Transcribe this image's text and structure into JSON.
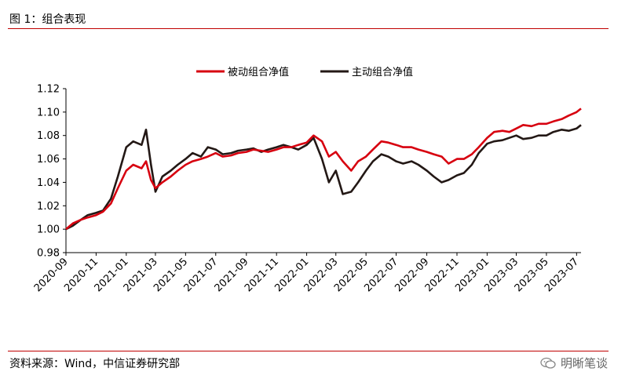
{
  "figure": {
    "title": "图 1：组合表现",
    "source": "资料来源：Wind，中信证券研究部",
    "watermark": "明晰笔谈"
  },
  "chart_data": {
    "type": "line",
    "title": "",
    "xlabel": "",
    "ylabel": "",
    "ylim": [
      0.98,
      1.12
    ],
    "y_ticks": [
      "0.98",
      "1.00",
      "1.02",
      "1.04",
      "1.06",
      "1.08",
      "1.10",
      "1.12"
    ],
    "x_range": [
      "2020-09",
      "2023-07"
    ],
    "x_ticks": [
      "2020-09",
      "2020-11",
      "2021-01",
      "2021-03",
      "2021-05",
      "2021-07",
      "2021-09",
      "2021-11",
      "2022-01",
      "2022-03",
      "2022-05",
      "2022-07",
      "2022-09",
      "2022-11",
      "2023-01",
      "2023-03",
      "2023-05",
      "2023-07"
    ],
    "legend_position": "top",
    "grid": false,
    "x": [
      "2020-09-01",
      "2020-09-15",
      "2020-10-01",
      "2020-10-15",
      "2020-11-01",
      "2020-11-15",
      "2020-12-01",
      "2020-12-15",
      "2021-01-01",
      "2021-01-15",
      "2021-02-01",
      "2021-02-10",
      "2021-02-20",
      "2021-03-01",
      "2021-03-15",
      "2021-04-01",
      "2021-04-15",
      "2021-05-01",
      "2021-05-15",
      "2021-06-01",
      "2021-06-15",
      "2021-07-01",
      "2021-07-15",
      "2021-08-01",
      "2021-08-15",
      "2021-09-01",
      "2021-09-15",
      "2021-10-01",
      "2021-10-15",
      "2021-11-01",
      "2021-11-15",
      "2021-12-01",
      "2021-12-15",
      "2022-01-01",
      "2022-01-15",
      "2022-02-01",
      "2022-02-15",
      "2022-03-01",
      "2022-03-15",
      "2022-04-01",
      "2022-04-15",
      "2022-05-01",
      "2022-05-15",
      "2022-06-01",
      "2022-06-15",
      "2022-07-01",
      "2022-07-15",
      "2022-08-01",
      "2022-08-15",
      "2022-09-01",
      "2022-09-15",
      "2022-10-01",
      "2022-10-15",
      "2022-11-01",
      "2022-11-15",
      "2022-12-01",
      "2022-12-15",
      "2023-01-01",
      "2023-01-15",
      "2023-02-01",
      "2023-02-15",
      "2023-03-01",
      "2023-03-15",
      "2023-04-01",
      "2023-04-15",
      "2023-05-01",
      "2023-05-15",
      "2023-06-01",
      "2023-06-15",
      "2023-07-01",
      "2023-07-10"
    ],
    "series": [
      {
        "name": "被动组合净值",
        "color": "#d7000f",
        "values": [
          1.0,
          1.005,
          1.008,
          1.01,
          1.012,
          1.015,
          1.022,
          1.035,
          1.05,
          1.055,
          1.052,
          1.058,
          1.042,
          1.035,
          1.04,
          1.045,
          1.05,
          1.055,
          1.058,
          1.06,
          1.062,
          1.065,
          1.062,
          1.063,
          1.065,
          1.066,
          1.068,
          1.067,
          1.066,
          1.068,
          1.07,
          1.07,
          1.072,
          1.074,
          1.08,
          1.075,
          1.062,
          1.066,
          1.058,
          1.05,
          1.058,
          1.062,
          1.068,
          1.075,
          1.074,
          1.072,
          1.07,
          1.07,
          1.068,
          1.066,
          1.064,
          1.062,
          1.056,
          1.06,
          1.06,
          1.064,
          1.07,
          1.078,
          1.083,
          1.084,
          1.083,
          1.086,
          1.089,
          1.088,
          1.09,
          1.09,
          1.092,
          1.094,
          1.097,
          1.1,
          1.103
        ]
      },
      {
        "name": "主动组合净值",
        "color": "#231815",
        "values": [
          1.0,
          1.003,
          1.008,
          1.012,
          1.014,
          1.016,
          1.026,
          1.045,
          1.07,
          1.075,
          1.072,
          1.085,
          1.055,
          1.032,
          1.045,
          1.05,
          1.055,
          1.06,
          1.065,
          1.062,
          1.07,
          1.068,
          1.064,
          1.065,
          1.067,
          1.068,
          1.069,
          1.066,
          1.068,
          1.07,
          1.072,
          1.07,
          1.068,
          1.072,
          1.078,
          1.06,
          1.04,
          1.05,
          1.03,
          1.032,
          1.04,
          1.05,
          1.058,
          1.064,
          1.062,
          1.058,
          1.056,
          1.058,
          1.055,
          1.05,
          1.045,
          1.04,
          1.042,
          1.046,
          1.048,
          1.055,
          1.065,
          1.073,
          1.075,
          1.076,
          1.078,
          1.08,
          1.077,
          1.078,
          1.08,
          1.08,
          1.083,
          1.085,
          1.084,
          1.086,
          1.089
        ]
      }
    ]
  }
}
